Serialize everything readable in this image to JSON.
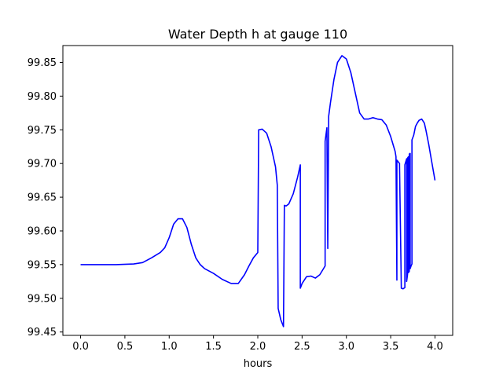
{
  "chart_data": {
    "type": "line",
    "title": "Water Depth h at gauge 110",
    "xlabel": "hours",
    "ylabel": "",
    "xlim": [
      -0.2,
      4.2
    ],
    "ylim": [
      99.445,
      99.875
    ],
    "xticks": [
      0.0,
      0.5,
      1.0,
      1.5,
      2.0,
      2.5,
      3.0,
      3.5,
      4.0
    ],
    "xtick_labels": [
      "0.0",
      "0.5",
      "1.0",
      "1.5",
      "2.0",
      "2.5",
      "3.0",
      "3.5",
      "4.0"
    ],
    "yticks": [
      99.45,
      99.5,
      99.55,
      99.6,
      99.65,
      99.7,
      99.75,
      99.8,
      99.85
    ],
    "ytick_labels": [
      "99.45",
      "99.50",
      "99.55",
      "99.60",
      "99.65",
      "99.70",
      "99.75",
      "99.80",
      "99.85"
    ],
    "grid": false,
    "line_color": "#0000ff",
    "series": [
      {
        "x": [
          0.0,
          0.2,
          0.4,
          0.6,
          0.7,
          0.8,
          0.9,
          0.95,
          1.0,
          1.05,
          1.1,
          1.15,
          1.2,
          1.25,
          1.3,
          1.35,
          1.4,
          1.5,
          1.6,
          1.7,
          1.78,
          1.85,
          1.9,
          1.95,
          2.0,
          2.01,
          2.05,
          2.1,
          2.15,
          2.2,
          2.22,
          2.23,
          2.26,
          2.29,
          2.3,
          2.32,
          2.35,
          2.4,
          2.45,
          2.48,
          2.48,
          2.5,
          2.55,
          2.6,
          2.65,
          2.7,
          2.76,
          2.76,
          2.78,
          2.79,
          2.79,
          2.8,
          2.8,
          2.82,
          2.86,
          2.9,
          2.95,
          3.0,
          3.05,
          3.1,
          3.15,
          3.2,
          3.25,
          3.3,
          3.35,
          3.4,
          3.45,
          3.5,
          3.55,
          3.56,
          3.57,
          3.57,
          3.6,
          3.6,
          3.62,
          3.64,
          3.66,
          3.66,
          3.68,
          3.68,
          3.69,
          3.69,
          3.7,
          3.7,
          3.71,
          3.71,
          3.72,
          3.72,
          3.73,
          3.74,
          3.74,
          3.76,
          3.78,
          3.8,
          3.82,
          3.85,
          3.88,
          3.9,
          3.93,
          3.96,
          4.0
        ],
        "y": [
          99.55,
          99.55,
          99.55,
          99.551,
          99.553,
          99.56,
          99.568,
          99.575,
          99.59,
          99.61,
          99.618,
          99.618,
          99.605,
          99.58,
          99.56,
          99.55,
          99.544,
          99.537,
          99.528,
          99.522,
          99.522,
          99.535,
          99.548,
          99.56,
          99.568,
          99.75,
          99.751,
          99.745,
          99.725,
          99.695,
          99.668,
          99.485,
          99.468,
          99.458,
          99.638,
          99.637,
          99.64,
          99.655,
          99.68,
          99.698,
          99.515,
          99.522,
          99.532,
          99.533,
          99.53,
          99.535,
          99.548,
          99.733,
          99.753,
          99.574,
          99.576,
          99.765,
          99.77,
          99.79,
          99.825,
          99.85,
          99.86,
          99.855,
          99.835,
          99.805,
          99.775,
          99.766,
          99.766,
          99.768,
          99.766,
          99.765,
          99.757,
          99.74,
          99.718,
          99.71,
          99.527,
          99.705,
          99.7,
          99.697,
          99.515,
          99.514,
          99.516,
          99.698,
          99.707,
          99.525,
          99.535,
          99.708,
          99.71,
          99.538,
          99.54,
          99.714,
          99.715,
          99.544,
          99.548,
          99.551,
          99.735,
          99.742,
          99.755,
          99.76,
          99.764,
          99.766,
          99.76,
          99.748,
          99.728,
          99.705,
          99.675
        ]
      }
    ]
  }
}
